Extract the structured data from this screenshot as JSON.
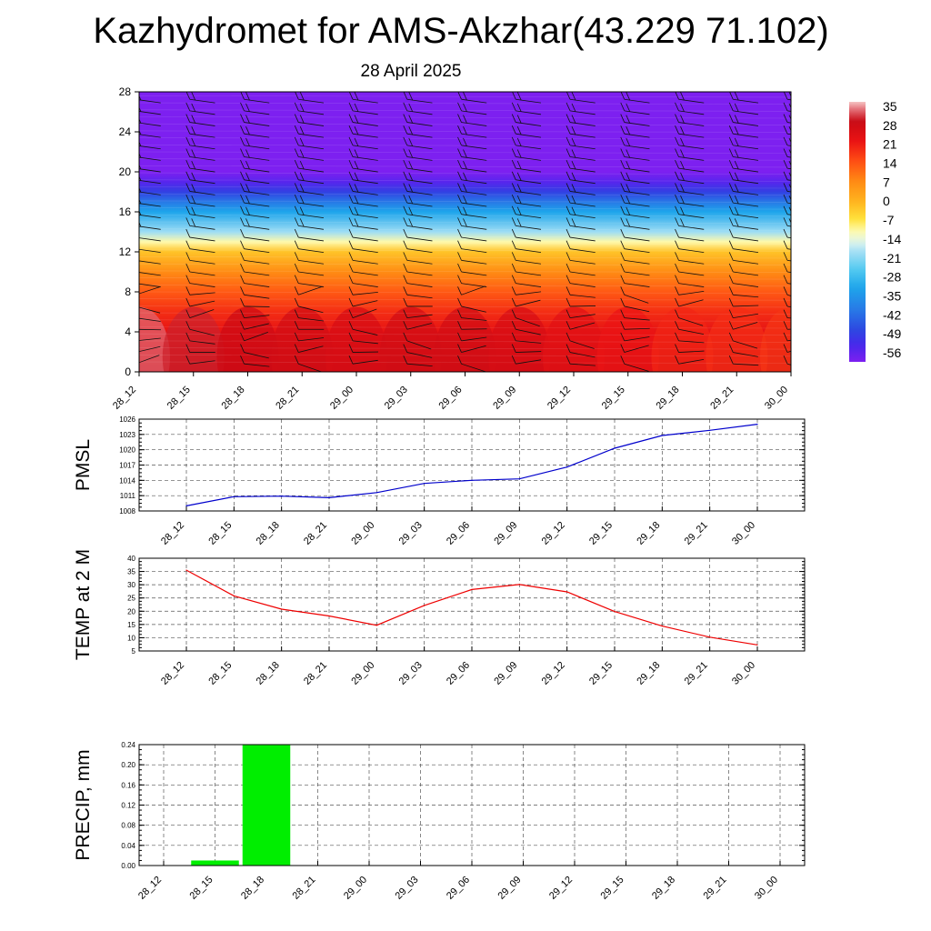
{
  "title": "Kazhydromet for AMS-Akzhar(43.229 71.102)",
  "subtitle": "28 April 2025",
  "time_labels": [
    "28_12",
    "28_15",
    "28_18",
    "28_21",
    "29_00",
    "29_03",
    "29_06",
    "29_09",
    "29_12",
    "29_15",
    "29_18",
    "29_21",
    "30_00"
  ],
  "chart_data": [
    {
      "type": "heatmap",
      "name": "cross-section",
      "xlabel": "",
      "ylabel": "",
      "x": [
        "28_12",
        "28_15",
        "28_18",
        "28_21",
        "29_00",
        "29_03",
        "29_06",
        "29_09",
        "29_12",
        "29_15",
        "29_18",
        "29_21",
        "30_00"
      ],
      "y_ticks": [
        0,
        4,
        8,
        12,
        16,
        20,
        24,
        28
      ],
      "ylim": [
        0,
        28
      ],
      "colorbar": {
        "labels": [
          "35",
          "28",
          "21",
          "14",
          "7",
          "0",
          "-7",
          "-14",
          "-21",
          "-28",
          "-35",
          "-42",
          "-49",
          "-56"
        ],
        "range": [
          -56,
          35
        ]
      },
      "levels": [
        {
          "y": 0,
          "value": 28
        },
        {
          "y": 2,
          "value": 25
        },
        {
          "y": 4,
          "value": 22
        },
        {
          "y": 6,
          "value": 18
        },
        {
          "y": 8,
          "value": 13
        },
        {
          "y": 10,
          "value": 7
        },
        {
          "y": 12,
          "value": -2
        },
        {
          "y": 13,
          "value": -10
        },
        {
          "y": 14,
          "value": -18
        },
        {
          "y": 16,
          "value": -30
        },
        {
          "y": 17,
          "value": -38
        },
        {
          "y": 18,
          "value": -46
        },
        {
          "y": 19,
          "value": -52
        },
        {
          "y": 20,
          "value": -56
        },
        {
          "y": 28,
          "value": -56
        }
      ],
      "surface_anomaly": [
        6,
        3,
        1,
        0,
        -1,
        0,
        0,
        -1,
        -3,
        -5,
        -7,
        -8,
        -9
      ],
      "wind_barbs": true
    },
    {
      "type": "line",
      "name": "PMSL",
      "ylabel": "PMSL",
      "ylim": [
        1008,
        1026
      ],
      "y_ticks": [
        1008,
        1011,
        1014,
        1017,
        1020,
        1023,
        1026
      ],
      "categories": [
        "28_12",
        "28_15",
        "28_18",
        "28_21",
        "29_00",
        "29_03",
        "29_06",
        "29_09",
        "29_12",
        "29_15",
        "29_18",
        "29_21",
        "30_00"
      ],
      "values": [
        1009,
        1010.8,
        1010.9,
        1010.6,
        1011.6,
        1013.4,
        1014,
        1014.3,
        1016.6,
        1020.3,
        1022.8,
        1023.8,
        1025
      ],
      "color": "#0000cc"
    },
    {
      "type": "line",
      "name": "TEMP at 2 M",
      "ylabel": "TEMP at 2 M",
      "ylim": [
        5,
        40
      ],
      "y_ticks": [
        5,
        10,
        15,
        20,
        25,
        30,
        35,
        40
      ],
      "categories": [
        "28_12",
        "28_15",
        "28_18",
        "28_21",
        "29_00",
        "29_03",
        "29_06",
        "29_09",
        "29_12",
        "29_15",
        "29_18",
        "29_21",
        "30_00"
      ],
      "values": [
        35.5,
        25.8,
        20.8,
        18.2,
        14.7,
        22.2,
        28.2,
        30.1,
        27.3,
        19.9,
        14.4,
        10.2,
        7.3
      ],
      "color": "#ee0000"
    },
    {
      "type": "bar",
      "name": "PRECIP",
      "ylabel": "PRECIP, mm",
      "ylim": [
        0,
        0.24
      ],
      "y_ticks": [
        "0.00",
        "0.04",
        "0.08",
        "0.12",
        "0.16",
        "0.20",
        "0.24"
      ],
      "categories": [
        "28_12",
        "28_15",
        "28_18",
        "28_21",
        "29_00",
        "29_03",
        "29_06",
        "29_09",
        "29_12",
        "29_15",
        "29_18",
        "29_21",
        "30_00"
      ],
      "values": [
        0,
        0.01,
        0.24,
        0,
        0,
        0,
        0,
        0,
        0,
        0,
        0,
        0,
        0
      ],
      "color": "#00ee00"
    }
  ]
}
